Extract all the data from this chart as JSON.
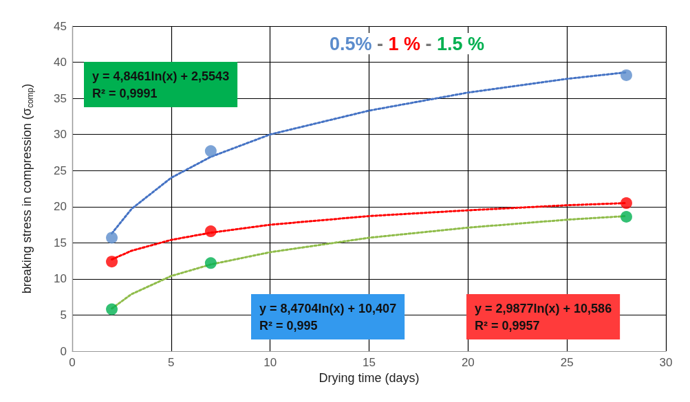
{
  "chart_data": {
    "type": "scatter",
    "title": "0.5% - 1 % - 1.5 %",
    "xlabel": "Drying time (days)",
    "ylabel": "breaking stress in compression (σ$_{comp}$)",
    "xlim": [
      0,
      30
    ],
    "xticks": [
      0,
      5,
      10,
      15,
      20,
      25,
      30
    ],
    "ylim": [
      0,
      45
    ],
    "yticks": [
      0,
      5,
      10,
      15,
      20,
      25,
      30,
      35,
      40,
      45
    ],
    "grid": true,
    "marker": "circle",
    "annotations": [
      "y = 4,8461ln(x) + 2,5543\nR² = 0,9991",
      "y = 8,4704ln(x) + 10,407\nR² = 0,995",
      "y = 2,9877ln(x) + 10,586\nR² = 0,9957"
    ],
    "series": [
      {
        "color": "#5b8ccc",
        "x": [
          2,
          7,
          28
        ],
        "values": [
          15.7,
          27.7,
          38.2
        ]
      },
      {
        "color": "#ff0000",
        "x": [
          2,
          7,
          28
        ],
        "values": [
          12.4,
          16.6,
          20.5
        ]
      },
      {
        "color": "#00b050",
        "x": [
          2,
          7,
          28
        ],
        "values": [
          5.8,
          12.2,
          18.6
        ]
      },
      {
        "type": "line",
        "marker": "none",
        "line_style": "dotted",
        "color": "#4472c4",
        "x": [
          2,
          3,
          5,
          7,
          10,
          15,
          20,
          25,
          28
        ],
        "values": [
          16.3,
          19.7,
          24.0,
          26.9,
          30.0,
          33.3,
          35.8,
          37.7,
          38.6
        ]
      },
      {
        "type": "line",
        "marker": "none",
        "line_style": "dotted",
        "color": "#ff0000",
        "x": [
          2,
          3,
          5,
          7,
          10,
          15,
          20,
          25,
          28
        ],
        "values": [
          12.7,
          13.9,
          15.4,
          16.4,
          17.5,
          18.7,
          19.5,
          20.2,
          20.5
        ]
      },
      {
        "type": "line",
        "marker": "none",
        "line_style": "dotted",
        "color": "#8fbc4a",
        "x": [
          2,
          3,
          5,
          7,
          10,
          15,
          20,
          25,
          28
        ],
        "values": [
          5.9,
          7.9,
          10.4,
          12.0,
          13.7,
          15.7,
          17.1,
          18.2,
          18.7
        ]
      }
    ]
  }
}
